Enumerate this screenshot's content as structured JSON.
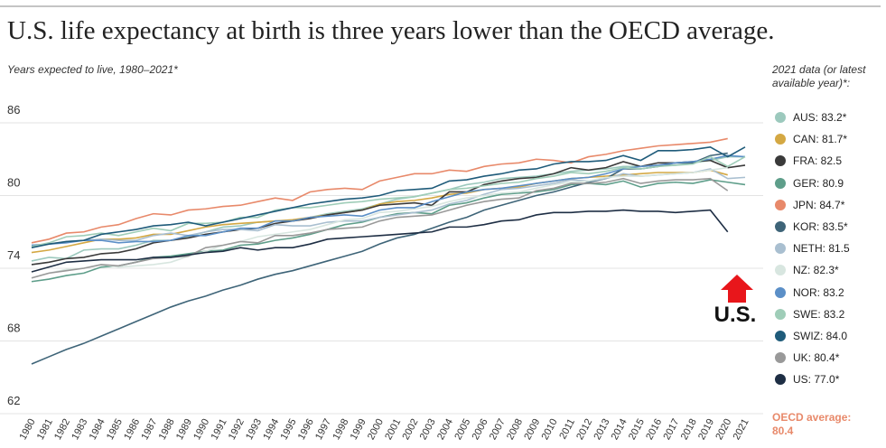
{
  "chart_data": {
    "type": "line",
    "title": "U.S. life expectancy at birth is three years lower than the OECD average.",
    "subtitle": "Years expected to live, 1980–2021*",
    "legend_title": "2021 data (or latest available year)*:",
    "annotations": [
      "U.S.",
      "OECD average: 80.4"
    ],
    "x": [
      1980,
      1981,
      1982,
      1983,
      1984,
      1985,
      1986,
      1987,
      1988,
      1989,
      1990,
      1991,
      1992,
      1993,
      1994,
      1995,
      1996,
      1997,
      1998,
      1999,
      2000,
      2001,
      2002,
      2003,
      2004,
      2005,
      2006,
      2007,
      2008,
      2009,
      2010,
      2011,
      2012,
      2013,
      2014,
      2015,
      2016,
      2017,
      2018,
      2019,
      2020,
      2021
    ],
    "xlim": [
      1980,
      2021
    ],
    "ylim": [
      62,
      86
    ],
    "yticks": [
      62,
      68,
      74,
      80,
      86
    ],
    "grid": true,
    "series": [
      {
        "name": "AUS: 83.2*",
        "color": "#9cc9bd",
        "values": [
          74.6,
          74.9,
          74.8,
          75.5,
          75.6,
          75.6,
          75.9,
          76.3,
          76.3,
          76.6,
          77.0,
          77.4,
          77.5,
          77.8,
          77.9,
          77.9,
          78.2,
          78.5,
          78.7,
          78.9,
          79.3,
          79.7,
          79.9,
          80.2,
          80.5,
          80.9,
          81.1,
          81.4,
          81.5,
          81.6,
          81.8,
          82.0,
          82.1,
          82.2,
          82.4,
          82.4,
          82.5,
          82.5,
          82.7,
          82.9,
          83.2,
          83.2
        ]
      },
      {
        "name": "CAN: 81.7*",
        "color": "#d4a843",
        "values": [
          75.3,
          75.5,
          75.8,
          76.1,
          76.4,
          76.4,
          76.5,
          76.8,
          76.8,
          77.1,
          77.4,
          77.6,
          77.7,
          77.8,
          77.9,
          78.0,
          78.2,
          78.4,
          78.6,
          78.8,
          79.3,
          79.5,
          79.6,
          79.8,
          80.1,
          80.2,
          80.5,
          80.6,
          80.7,
          81.0,
          81.2,
          81.4,
          81.5,
          81.6,
          81.7,
          81.8,
          81.9,
          81.9,
          81.9,
          82.1,
          81.7,
          null
        ]
      },
      {
        "name": "FRA: 82.5",
        "color": "#3a3a3a",
        "values": [
          74.3,
          74.5,
          74.8,
          74.9,
          75.2,
          75.3,
          75.6,
          76.1,
          76.3,
          76.5,
          76.8,
          77.0,
          77.2,
          77.3,
          77.7,
          77.9,
          78.1,
          78.4,
          78.6,
          78.8,
          79.2,
          79.3,
          79.4,
          79.2,
          80.3,
          80.3,
          80.9,
          81.2,
          81.4,
          81.5,
          81.8,
          82.3,
          82.1,
          82.3,
          82.8,
          82.4,
          82.7,
          82.7,
          82.8,
          82.9,
          82.3,
          82.5
        ]
      },
      {
        "name": "GER: 80.9",
        "color": "#5e9e8a",
        "values": [
          72.9,
          73.1,
          73.4,
          73.6,
          74.1,
          74.2,
          74.5,
          74.9,
          75.0,
          75.2,
          75.4,
          75.5,
          75.9,
          76.0,
          76.3,
          76.5,
          76.8,
          77.2,
          77.6,
          77.8,
          78.2,
          78.5,
          78.6,
          78.5,
          79.2,
          79.4,
          79.8,
          80.1,
          80.2,
          80.3,
          80.5,
          80.9,
          81.0,
          80.9,
          81.2,
          80.7,
          81.0,
          81.1,
          81.0,
          81.3,
          81.1,
          80.9
        ]
      },
      {
        "name": "JPN: 84.7*",
        "color": "#e8896a",
        "values": [
          76.1,
          76.4,
          76.9,
          77.0,
          77.4,
          77.6,
          78.1,
          78.5,
          78.4,
          78.8,
          78.9,
          79.1,
          79.2,
          79.5,
          79.8,
          79.6,
          80.3,
          80.5,
          80.6,
          80.5,
          81.2,
          81.5,
          81.8,
          81.8,
          82.1,
          82.0,
          82.4,
          82.6,
          82.7,
          83.0,
          82.9,
          82.7,
          83.2,
          83.4,
          83.7,
          83.9,
          84.1,
          84.2,
          84.3,
          84.4,
          84.7,
          null
        ]
      },
      {
        "name": "KOR: 83.5*",
        "color": "#3e6478",
        "values": [
          66.1,
          66.7,
          67.3,
          67.8,
          68.4,
          69.0,
          69.6,
          70.2,
          70.8,
          71.3,
          71.7,
          72.2,
          72.6,
          73.1,
          73.5,
          73.8,
          74.2,
          74.6,
          75.0,
          75.4,
          76.0,
          76.5,
          76.8,
          77.3,
          77.8,
          78.2,
          78.8,
          79.2,
          79.6,
          80.0,
          80.3,
          80.7,
          81.1,
          81.4,
          82.2,
          82.2,
          82.4,
          82.7,
          82.7,
          83.3,
          83.5,
          null
        ]
      },
      {
        "name": "NETH: 81.5",
        "color": "#a9bfd0",
        "values": [
          75.9,
          76.0,
          76.2,
          76.3,
          76.4,
          76.3,
          76.3,
          76.7,
          76.9,
          76.7,
          77.0,
          77.2,
          77.2,
          77.1,
          77.6,
          77.5,
          77.5,
          77.8,
          77.9,
          77.9,
          78.2,
          78.4,
          78.6,
          78.8,
          79.3,
          79.6,
          80.1,
          80.5,
          80.6,
          80.8,
          81.0,
          81.3,
          81.2,
          81.4,
          81.8,
          81.6,
          81.7,
          81.8,
          81.9,
          82.2,
          81.4,
          81.5
        ]
      },
      {
        "name": "NZ: 82.3*",
        "color": "#d8e6e0",
        "values": [
          73.2,
          73.6,
          73.9,
          74.0,
          74.3,
          74.1,
          74.2,
          74.3,
          74.5,
          75.0,
          75.4,
          75.9,
          76.2,
          76.6,
          76.8,
          77.0,
          77.2,
          77.6,
          78.0,
          78.1,
          78.6,
          78.7,
          78.9,
          79.1,
          79.5,
          79.8,
          80.0,
          80.2,
          80.3,
          80.6,
          80.9,
          81.1,
          81.2,
          81.5,
          81.6,
          81.6,
          81.7,
          81.8,
          81.9,
          82.1,
          82.3,
          null
        ]
      },
      {
        "name": "NOR: 83.2",
        "color": "#5b8fc7",
        "values": [
          75.9,
          76.0,
          76.1,
          76.3,
          76.3,
          76.1,
          76.2,
          76.2,
          76.3,
          76.7,
          76.7,
          77.0,
          77.3,
          77.3,
          77.9,
          77.9,
          78.2,
          78.3,
          78.4,
          78.3,
          78.8,
          79.0,
          79.0,
          79.5,
          79.9,
          80.3,
          80.5,
          80.6,
          80.8,
          81.0,
          81.2,
          81.4,
          81.5,
          81.8,
          82.2,
          82.4,
          82.5,
          82.7,
          82.8,
          83.0,
          83.3,
          83.2
        ]
      },
      {
        "name": "SWE: 83.2",
        "color": "#9fcdb8",
        "values": [
          75.8,
          76.1,
          76.6,
          76.7,
          76.9,
          76.7,
          77.0,
          77.3,
          77.1,
          77.7,
          77.7,
          77.8,
          78.2,
          78.2,
          78.8,
          79.0,
          79.0,
          79.2,
          79.4,
          79.5,
          79.7,
          79.8,
          79.9,
          80.2,
          80.5,
          80.6,
          80.8,
          81.0,
          81.1,
          81.4,
          81.6,
          81.9,
          81.8,
          82.0,
          82.3,
          82.2,
          82.4,
          82.5,
          82.6,
          83.2,
          82.4,
          83.2
        ]
      },
      {
        "name": "SWIZ: 84.0",
        "color": "#1f5b7a",
        "values": [
          75.7,
          76.0,
          76.2,
          76.3,
          76.8,
          77.0,
          77.2,
          77.5,
          77.6,
          77.8,
          77.5,
          77.8,
          78.1,
          78.4,
          78.7,
          79.0,
          79.3,
          79.5,
          79.7,
          79.8,
          80.0,
          80.4,
          80.5,
          80.6,
          81.2,
          81.3,
          81.6,
          81.8,
          82.1,
          82.2,
          82.6,
          82.8,
          82.8,
          82.9,
          83.3,
          82.9,
          83.7,
          83.7,
          83.8,
          84.0,
          83.2,
          84.0
        ]
      },
      {
        "name": "UK: 80.4*",
        "color": "#999999",
        "values": [
          73.2,
          73.6,
          73.8,
          74.0,
          74.3,
          74.2,
          74.5,
          74.8,
          74.9,
          75.0,
          75.7,
          75.9,
          76.2,
          76.1,
          76.7,
          76.7,
          76.9,
          77.2,
          77.3,
          77.4,
          77.9,
          78.2,
          78.3,
          78.4,
          78.8,
          79.2,
          79.5,
          79.7,
          79.8,
          80.4,
          80.6,
          81.0,
          81.0,
          81.1,
          81.4,
          81.0,
          81.2,
          81.3,
          81.3,
          81.4,
          80.4,
          null
        ]
      },
      {
        "name": "US: 77.0*",
        "color": "#1e2e44",
        "values": [
          73.7,
          74.1,
          74.5,
          74.6,
          74.7,
          74.7,
          74.7,
          74.9,
          74.9,
          75.1,
          75.3,
          75.4,
          75.7,
          75.5,
          75.7,
          75.7,
          76.0,
          76.4,
          76.5,
          76.6,
          76.7,
          76.8,
          76.9,
          77.0,
          77.4,
          77.4,
          77.6,
          77.9,
          78.0,
          78.4,
          78.6,
          78.6,
          78.7,
          78.7,
          78.8,
          78.7,
          78.7,
          78.6,
          78.7,
          78.8,
          77.0,
          null
        ]
      }
    ]
  }
}
